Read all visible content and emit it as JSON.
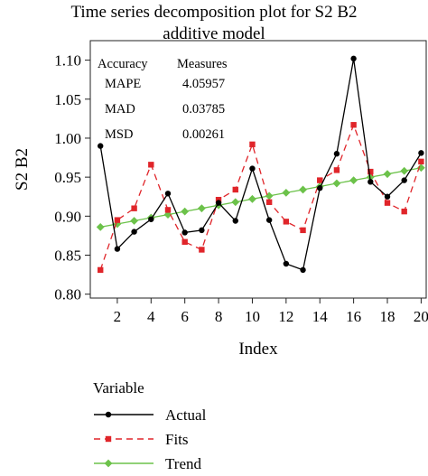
{
  "chart_data": {
    "type": "line",
    "title_lines": [
      "Time series decomposition plot for S2 B2",
      "additive model"
    ],
    "xlabel": "Index",
    "ylabel": "S2 B2",
    "x": [
      1,
      2,
      3,
      4,
      5,
      6,
      7,
      8,
      9,
      10,
      11,
      12,
      13,
      14,
      15,
      16,
      17,
      18,
      19,
      20
    ],
    "x_ticks": [
      2,
      4,
      6,
      8,
      10,
      12,
      14,
      16,
      18,
      20
    ],
    "xlim": [
      0.4,
      20.3
    ],
    "ylim": [
      0.795,
      1.125
    ],
    "y_ticks": [
      "0.80",
      "0.85",
      "0.90",
      "0.95",
      "1.00",
      "1.05",
      "1.10"
    ],
    "series": [
      {
        "name": "Actual",
        "color": "#000000",
        "dash": "solid",
        "marker": "circle",
        "values": [
          0.99,
          0.858,
          0.88,
          0.896,
          0.929,
          0.879,
          0.882,
          0.917,
          0.894,
          0.961,
          0.895,
          0.839,
          0.831,
          0.936,
          0.98,
          1.102,
          0.944,
          0.925,
          0.946,
          0.981
        ]
      },
      {
        "name": "Fits",
        "color": "#e0252a",
        "dash": "dashed",
        "marker": "square",
        "values": [
          0.831,
          0.895,
          0.91,
          0.966,
          0.908,
          0.867,
          0.857,
          0.921,
          0.934,
          0.992,
          0.918,
          0.893,
          0.882,
          0.946,
          0.959,
          1.017,
          0.957,
          0.917,
          0.906,
          0.97
        ]
      },
      {
        "name": "Trend",
        "color": "#6cc24a",
        "dash": "solid",
        "marker": "diamond",
        "values": [
          0.886,
          0.89,
          0.894,
          0.898,
          0.902,
          0.906,
          0.91,
          0.914,
          0.918,
          0.922,
          0.926,
          0.93,
          0.934,
          0.938,
          0.942,
          0.946,
          0.95,
          0.954,
          0.958,
          0.962
        ]
      }
    ],
    "accuracy": {
      "headers": [
        "Accuracy",
        "Measures"
      ],
      "rows": [
        {
          "label": "MAPE",
          "value": "4.05957"
        },
        {
          "label": "MAD",
          "value": "0.03785"
        },
        {
          "label": "MSD",
          "value": "0.00261"
        }
      ]
    },
    "legend": {
      "title": "Variable",
      "position": "below"
    }
  }
}
